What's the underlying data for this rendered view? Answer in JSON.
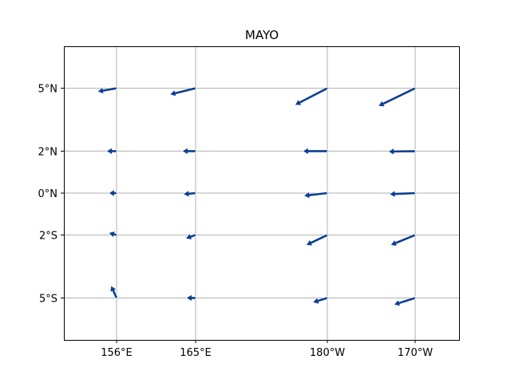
{
  "title": "MAYO",
  "colors": {
    "arrow": "#0a3f91",
    "grid": "#b0b0b0",
    "frame": "#000000"
  },
  "chart_data": {
    "type": "quiver",
    "title": "MAYO",
    "grid": true,
    "x_range_lon_east": [
      150,
      195
    ],
    "y_range_lat": [
      -7,
      7
    ],
    "x_ticks": [
      {
        "lon": 156,
        "label": "156°E"
      },
      {
        "lon": 165,
        "label": "165°E"
      },
      {
        "lon": 180,
        "label": "180°W"
      },
      {
        "lon": 190,
        "label": "170°W"
      }
    ],
    "y_ticks": [
      {
        "lat": 5,
        "label": "5°N"
      },
      {
        "lat": 2,
        "label": "2°N"
      },
      {
        "lat": 0,
        "label": "0°N"
      },
      {
        "lat": -2,
        "label": "2°S"
      },
      {
        "lat": -5,
        "label": "5°S"
      }
    ],
    "vectors": [
      {
        "lon": 156,
        "lat": 5,
        "u": -0.85,
        "v": -0.15
      },
      {
        "lon": 165,
        "lat": 5,
        "u": -1.15,
        "v": -0.28
      },
      {
        "lon": 180,
        "lat": 5,
        "u": -1.45,
        "v": -0.75
      },
      {
        "lon": 190,
        "lat": 5,
        "u": -1.65,
        "v": -0.8
      },
      {
        "lon": 156,
        "lat": 2,
        "u": -0.45,
        "v": 0.0
      },
      {
        "lon": 165,
        "lat": 2,
        "u": -0.6,
        "v": 0.0
      },
      {
        "lon": 180,
        "lat": 2,
        "u": -1.1,
        "v": 0.0
      },
      {
        "lon": 190,
        "lat": 2,
        "u": -1.2,
        "v": -0.02
      },
      {
        "lon": 156,
        "lat": 0,
        "u": -0.35,
        "v": 0.0
      },
      {
        "lon": 165,
        "lat": 0,
        "u": -0.55,
        "v": -0.05
      },
      {
        "lon": 180,
        "lat": 0,
        "u": -1.05,
        "v": -0.12
      },
      {
        "lon": 190,
        "lat": 0,
        "u": -1.15,
        "v": -0.05
      },
      {
        "lon": 156,
        "lat": -2,
        "u": -0.35,
        "v": 0.1
      },
      {
        "lon": 165,
        "lat": -2,
        "u": -0.45,
        "v": -0.15
      },
      {
        "lon": 180,
        "lat": -2,
        "u": -0.95,
        "v": -0.45
      },
      {
        "lon": 190,
        "lat": -2,
        "u": -1.1,
        "v": -0.45
      },
      {
        "lon": 156,
        "lat": -5,
        "u": -0.25,
        "v": 0.55
      },
      {
        "lon": 165,
        "lat": -5,
        "u": -0.42,
        "v": 0.0
      },
      {
        "lon": 180,
        "lat": -5,
        "u": -0.65,
        "v": -0.2
      },
      {
        "lon": 190,
        "lat": -5,
        "u": -0.95,
        "v": -0.3
      }
    ]
  }
}
